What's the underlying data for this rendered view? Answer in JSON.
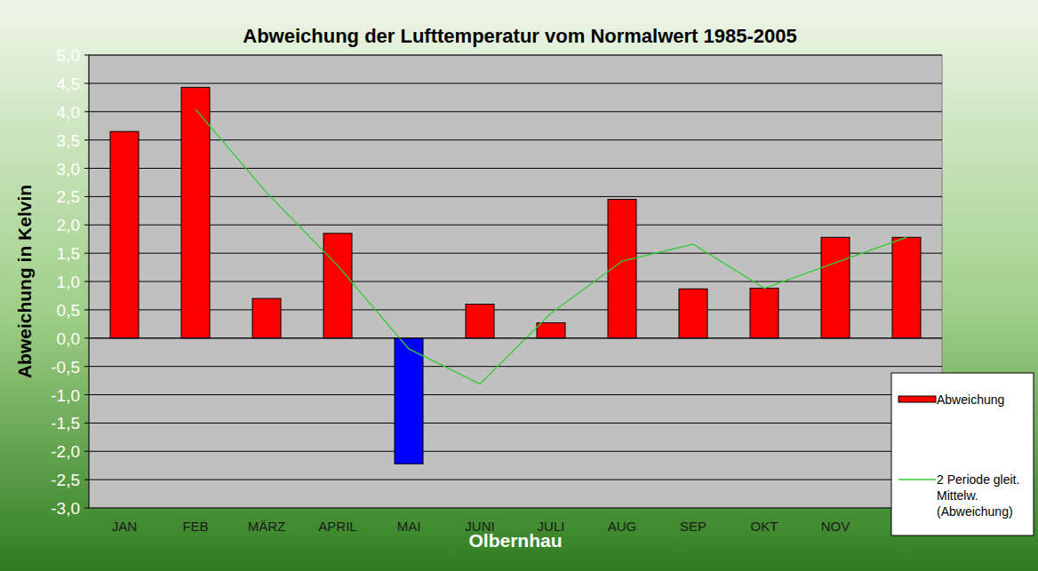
{
  "chart_data": {
    "type": "bar",
    "title": "Abweichung der Lufttemperatur vom Normalwert 1985-2005",
    "x_label": "Olbernhau",
    "y_label": "Abweichung in Kelvin",
    "categories": [
      "JAN",
      "FEB",
      "MÄRZ",
      "APRIL",
      "MAI",
      "JUNI",
      "JULI",
      "AUG",
      "SEP",
      "OKT",
      "NOV",
      null
    ],
    "series": [
      {
        "name": "Abweichung",
        "type": "bar",
        "color": "#ff0000",
        "colors": [
          "#ff0000",
          "#ff0000",
          "#ff0000",
          "#ff0000",
          "#0000ff",
          "#ff0000",
          "#ff0000",
          "#ff0000",
          "#ff0000",
          "#ff0000",
          "#ff0000",
          "#ff0000"
        ],
        "values": [
          3.65,
          4.43,
          0.7,
          1.85,
          -2.22,
          0.6,
          0.27,
          2.45,
          0.87,
          0.88,
          1.78,
          1.78
        ]
      },
      {
        "name": "2 Periode gleit. Mittelw. (Abweichung)",
        "type": "line",
        "color": "#33cc33",
        "values": [
          null,
          4.04,
          2.57,
          1.28,
          -0.19,
          -0.81,
          0.44,
          1.36,
          1.66,
          0.88,
          1.33,
          1.78
        ]
      }
    ],
    "ylim": [
      -3,
      5
    ],
    "yticks": [
      {
        "value": -3,
        "label": "-3,0"
      },
      {
        "value": -2.5,
        "label": "-2,5"
      },
      {
        "value": -2,
        "label": "-2,0"
      },
      {
        "value": -1.5,
        "label": "-1,5"
      },
      {
        "value": -1,
        "label": "-1,0"
      },
      {
        "value": -0.5,
        "label": "-0,5"
      },
      {
        "value": 0,
        "label": "0,0"
      },
      {
        "value": 0.5,
        "label": "0,5"
      },
      {
        "value": 1,
        "label": "1,0"
      },
      {
        "value": 1.5,
        "label": "1,5"
      },
      {
        "value": 2,
        "label": "2,0"
      },
      {
        "value": 2.5,
        "label": "2,5"
      },
      {
        "value": 3,
        "label": "3,0"
      },
      {
        "value": 3.5,
        "label": "3,5"
      },
      {
        "value": 4,
        "label": "4,0"
      },
      {
        "value": 4.5,
        "label": "4,5"
      },
      {
        "value": 5,
        "label": "5,0"
      }
    ],
    "grid": true,
    "legend": "right"
  }
}
